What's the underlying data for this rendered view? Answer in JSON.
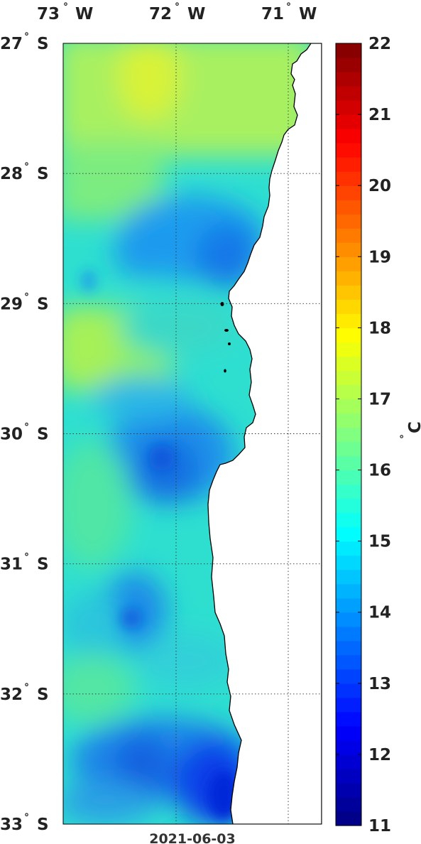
{
  "map": {
    "date_label": "2021-06-03",
    "lon_labels": [
      {
        "deg": "73",
        "dir": "W"
      },
      {
        "deg": "72",
        "dir": "W"
      },
      {
        "deg": "71",
        "dir": "W"
      }
    ],
    "lat_labels": [
      {
        "deg": "27",
        "dir": "S"
      },
      {
        "deg": "28",
        "dir": "S"
      },
      {
        "deg": "29",
        "dir": "S"
      },
      {
        "deg": "30",
        "dir": "S"
      },
      {
        "deg": "31",
        "dir": "S"
      },
      {
        "deg": "32",
        "dir": "S"
      },
      {
        "deg": "33",
        "dir": "S"
      }
    ],
    "land_color": "#ffffff",
    "coast_color": "#000000"
  },
  "colorbar": {
    "unit_deg": "°",
    "unit_letter": "C",
    "ticks": [
      "22",
      "21",
      "20",
      "19",
      "18",
      "17",
      "16",
      "15",
      "14",
      "13",
      "12",
      "11"
    ],
    "vmin": 11,
    "vmax": 22,
    "colormap": "jet"
  },
  "chart_data": {
    "type": "heatmap",
    "variable": "sea surface temperature",
    "lon_range": [
      -73.0,
      -70.7
    ],
    "lat_range": [
      -33.0,
      -27.0
    ],
    "color_range": [
      11,
      22
    ],
    "grid_lines": true,
    "regions": [
      {
        "lat": -27.2,
        "lon": -72.3,
        "value": 17.0
      },
      {
        "lat": -27.8,
        "lon": -72.6,
        "value": 16.6
      },
      {
        "lat": -28.5,
        "lon": -71.6,
        "value": 14.0
      },
      {
        "lat": -28.7,
        "lon": -72.1,
        "value": 14.3
      },
      {
        "lat": -29.3,
        "lon": -72.7,
        "value": 16.6
      },
      {
        "lat": -29.8,
        "lon": -71.8,
        "value": 14.9
      },
      {
        "lat": -30.3,
        "lon": -72.0,
        "value": 13.8
      },
      {
        "lat": -30.8,
        "lon": -72.8,
        "value": 15.7
      },
      {
        "lat": -31.5,
        "lon": -72.3,
        "value": 14.2
      },
      {
        "lat": -32.1,
        "lon": -72.6,
        "value": 15.3
      },
      {
        "lat": -32.6,
        "lon": -72.2,
        "value": 13.7
      },
      {
        "lat": -32.8,
        "lon": -71.6,
        "value": 12.7
      }
    ]
  }
}
